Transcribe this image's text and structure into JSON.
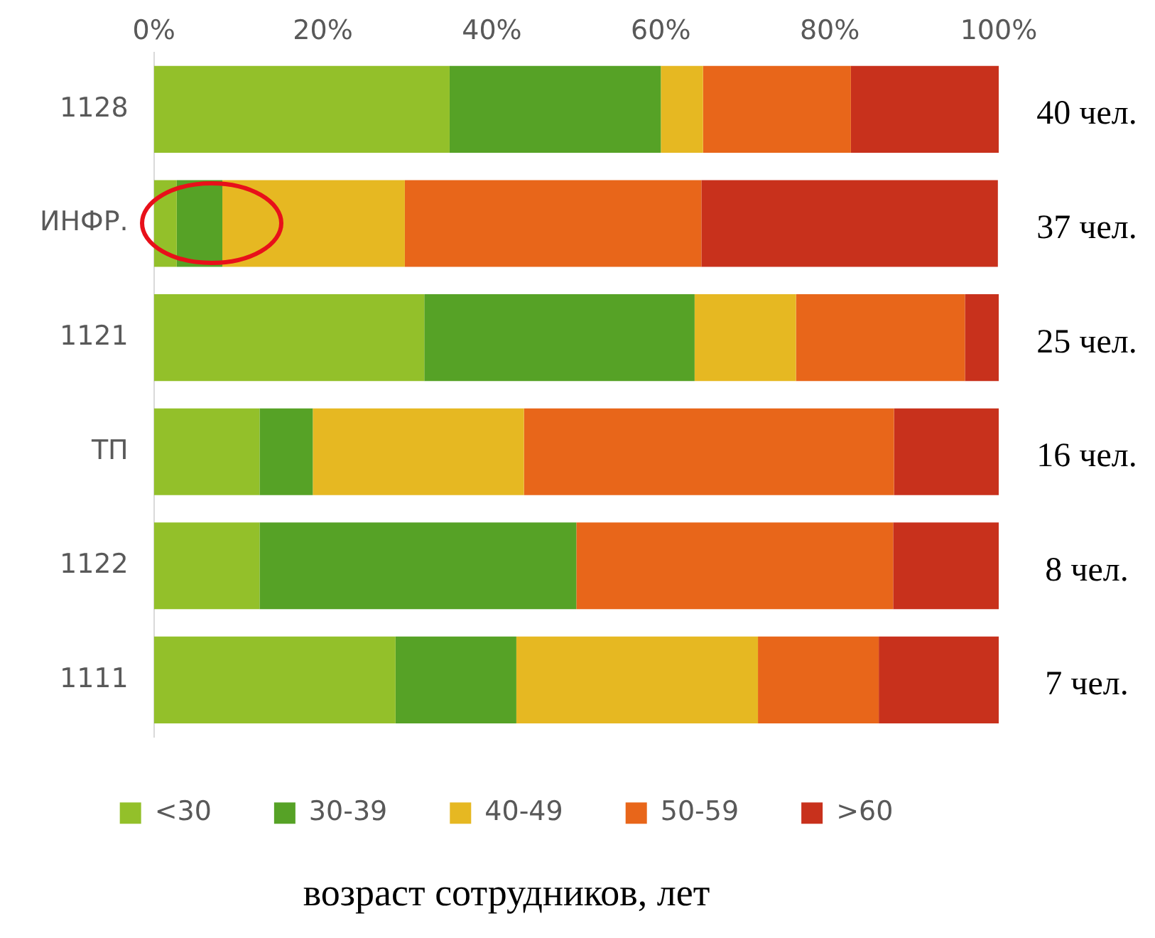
{
  "chart_data": {
    "type": "bar",
    "orientation": "horizontal",
    "stacked": true,
    "xlabel": "возраст сотрудников, лет",
    "categories": [
      "1128",
      "ИНФР.",
      "1121",
      "ТП",
      "1122",
      "1111"
    ],
    "series": [
      {
        "name": "<30",
        "color": "#93c02a",
        "values": [
          35,
          2.7,
          32,
          12.5,
          12.5,
          28.6
        ]
      },
      {
        "name": "30-39",
        "color": "#56a226",
        "values": [
          25,
          5.4,
          32,
          6.3,
          37.5,
          14.3
        ]
      },
      {
        "name": "40-49",
        "color": "#e6b822",
        "values": [
          5,
          21.6,
          12,
          25,
          0,
          28.6
        ]
      },
      {
        "name": "50-59",
        "color": "#e8661a",
        "values": [
          17.5,
          35.1,
          20,
          43.8,
          37.5,
          14.3
        ]
      },
      {
        "name": ">60",
        "color": "#c8311c",
        "values": [
          17.5,
          35.1,
          4,
          12.5,
          12.5,
          14.3
        ]
      }
    ],
    "xlim": [
      0,
      100
    ],
    "xticks": [
      {
        "value": 0,
        "label": "0%"
      },
      {
        "value": 20,
        "label": "20%"
      },
      {
        "value": 40,
        "label": "40%"
      },
      {
        "value": 60,
        "label": "60%"
      },
      {
        "value": 80,
        "label": "80%"
      },
      {
        "value": 100,
        "label": "100%"
      }
    ],
    "annotations": [
      "40 чел.",
      "37 чел.",
      "25 чел.",
      "16 чел.",
      "8 чел.",
      "7 чел."
    ],
    "grid": false,
    "legend": "bottom"
  }
}
